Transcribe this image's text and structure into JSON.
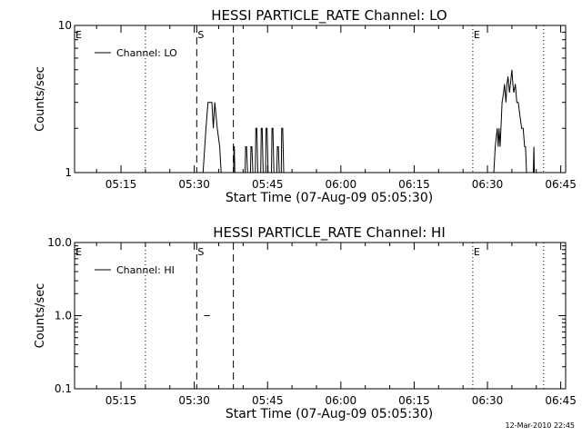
{
  "footer_timestamp": "12-Mar-2010 22:45",
  "chart_data": [
    {
      "type": "line",
      "title": "HESSI PARTICLE_RATE Channel: LO",
      "xlabel": "Start Time (07-Aug-09 05:05:30)",
      "ylabel": "Counts/sec",
      "yscale": "log",
      "ylim": [
        1,
        10
      ],
      "ytick_labels": [
        {
          "v": 1,
          "t": "1"
        },
        {
          "v": 10,
          "t": "10"
        }
      ],
      "xlim_min": [
        5.5,
        106
      ],
      "xtick_labels": [
        {
          "m": 15,
          "t": "05:15"
        },
        {
          "m": 30,
          "t": "05:30"
        },
        {
          "m": 45,
          "t": "05:45"
        },
        {
          "m": 60,
          "t": "06:00"
        },
        {
          "m": 75,
          "t": "06:15"
        },
        {
          "m": 90,
          "t": "06:30"
        },
        {
          "m": 105,
          "t": "06:45"
        }
      ],
      "vlines": [
        {
          "m": 5.5,
          "style": "dotted",
          "label": "E"
        },
        {
          "m": 20,
          "style": "dotted",
          "label": ""
        },
        {
          "m": 30.5,
          "style": "dashed",
          "label": "S"
        },
        {
          "m": 38,
          "style": "dashed",
          "label": ""
        },
        {
          "m": 87,
          "style": "dotted",
          "label": "E"
        },
        {
          "m": 101.5,
          "style": "dotted",
          "label": ""
        }
      ],
      "legend": {
        "label": "Channel: LO",
        "position": "top-left"
      },
      "series": [
        {
          "name": "Channel: LO",
          "x": [
            31.8,
            32.4,
            32.8,
            33.6,
            33.9,
            34.2,
            34.7,
            35.2,
            35.5,
            38.05,
            38.1,
            38.2,
            38.3,
            40.4,
            40.5,
            40.7,
            40.9,
            41.5,
            41.6,
            41.8,
            42.0,
            42.5,
            42.6,
            42.8,
            43.0,
            43.6,
            43.7,
            43.9,
            44.1,
            44.6,
            44.7,
            44.9,
            45.1,
            45.8,
            45.9,
            46.1,
            46.3,
            46.9,
            47.0,
            47.2,
            47.4,
            47.8,
            47.9,
            48.1,
            48.3,
            91.3,
            91.6,
            92.0,
            92.2,
            92.4,
            92.6,
            93.0,
            93.3,
            93.5,
            93.8,
            94.0,
            94.2,
            94.5,
            94.7,
            95.0,
            95.2,
            95.4,
            95.7,
            96.0,
            96.3,
            96.6,
            97.0,
            97.3,
            97.6,
            97.8,
            98.0,
            99.4,
            99.5,
            99.6
          ],
          "y": [
            1,
            2,
            3,
            3,
            2,
            3,
            2,
            1.5,
            1,
            1,
            1.5,
            1.5,
            1,
            1,
            1.5,
            1.5,
            1,
            1,
            1.5,
            1.5,
            1,
            1,
            2,
            2,
            1,
            1,
            2,
            2,
            1,
            1,
            2,
            2,
            1,
            1,
            2,
            2,
            1,
            1,
            1.5,
            1.5,
            1,
            1,
            2,
            2,
            1,
            1,
            1.5,
            2,
            1.5,
            2,
            1.5,
            3,
            3.5,
            4,
            3,
            4,
            4.5,
            3.5,
            4,
            5,
            4,
            3.5,
            4,
            3,
            3,
            2.5,
            2,
            2,
            1.5,
            1.5,
            1,
            1,
            1.5,
            1
          ]
        }
      ]
    },
    {
      "type": "line",
      "title": "HESSI PARTICLE_RATE Channel: HI",
      "xlabel": "Start Time (07-Aug-09 05:05:30)",
      "ylabel": "Counts/sec",
      "yscale": "log",
      "ylim": [
        0.1,
        10
      ],
      "ytick_labels": [
        {
          "v": 0.1,
          "t": "0.1"
        },
        {
          "v": 1,
          "t": "1.0"
        },
        {
          "v": 10,
          "t": "10.0"
        }
      ],
      "xlim_min": [
        5.5,
        106
      ],
      "xtick_labels": [
        {
          "m": 15,
          "t": "05:15"
        },
        {
          "m": 30,
          "t": "05:30"
        },
        {
          "m": 45,
          "t": "05:45"
        },
        {
          "m": 60,
          "t": "06:00"
        },
        {
          "m": 75,
          "t": "06:15"
        },
        {
          "m": 90,
          "t": "06:30"
        },
        {
          "m": 105,
          "t": "06:45"
        }
      ],
      "vlines": [
        {
          "m": 5.5,
          "style": "dotted",
          "label": "E"
        },
        {
          "m": 20,
          "style": "dotted",
          "label": ""
        },
        {
          "m": 30.5,
          "style": "dashed",
          "label": "S"
        },
        {
          "m": 38,
          "style": "dashed",
          "label": ""
        },
        {
          "m": 87,
          "style": "dotted",
          "label": "E"
        },
        {
          "m": 101.5,
          "style": "dotted",
          "label": ""
        }
      ],
      "legend": {
        "label": "Channel: HI",
        "position": "top-left"
      },
      "series": [
        {
          "name": "Channel: HI",
          "x": [
            32.0,
            33.2
          ],
          "y": [
            1,
            1
          ]
        }
      ]
    }
  ]
}
